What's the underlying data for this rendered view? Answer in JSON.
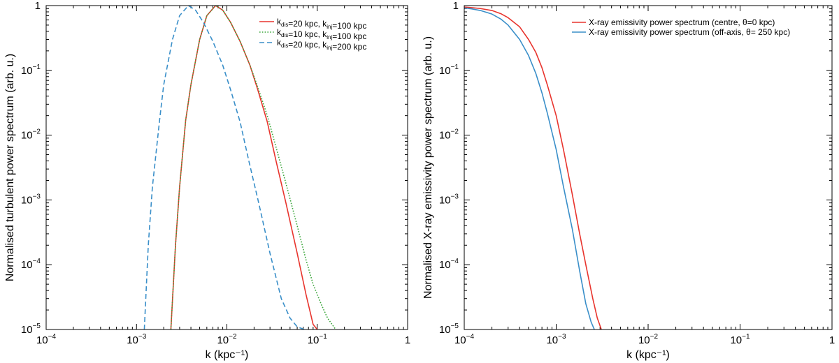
{
  "chart_data": [
    {
      "type": "line",
      "x_scale": "log",
      "y_scale": "log",
      "xlim": [
        0.0001,
        1
      ],
      "ylim": [
        1e-05,
        1
      ],
      "xlabel": "k (kpc⁻¹)",
      "ylabel": "Normalised turbulent power spectrum (arb. u.)",
      "x_ticks": [
        {
          "base": "10",
          "exp": "−4",
          "value": 0.0001
        },
        {
          "base": "10",
          "exp": "−3",
          "value": 0.001
        },
        {
          "base": "10",
          "exp": "−2",
          "value": 0.01
        },
        {
          "base": "10",
          "exp": "−1",
          "value": 0.1
        },
        {
          "base": "1",
          "exp": "",
          "value": 1
        }
      ],
      "y_ticks": [
        {
          "base": "10",
          "exp": "−5",
          "value": 1e-05
        },
        {
          "base": "10",
          "exp": "−4",
          "value": 0.0001
        },
        {
          "base": "10",
          "exp": "−3",
          "value": 0.001
        },
        {
          "base": "10",
          "exp": "−2",
          "value": 0.01
        },
        {
          "base": "10",
          "exp": "−1",
          "value": 0.1
        },
        {
          "base": "1",
          "exp": "",
          "value": 1
        }
      ],
      "legend_position": "top-right",
      "series": [
        {
          "name": "k_dis=20 kpc, k_inj=100 kpc",
          "legend_parts": [
            [
              "k",
              ""
            ],
            [
              "dis",
              "sub"
            ],
            [
              "=20 kpc, k",
              ""
            ],
            [
              "inj",
              "sub"
            ],
            [
              "=100 kpc",
              ""
            ]
          ],
          "color": "#e8352e",
          "dash": "solid",
          "x": [
            0.0024,
            0.0027,
            0.003,
            0.0035,
            0.004,
            0.005,
            0.006,
            0.0075,
            0.009,
            0.011,
            0.014,
            0.018,
            0.022,
            0.028,
            0.035,
            0.045,
            0.06,
            0.075,
            0.09,
            0.1
          ],
          "y": [
            1e-05,
            0.0002,
            0.0016,
            0.017,
            0.06,
            0.3,
            0.7,
            1.0,
            0.85,
            0.55,
            0.28,
            0.12,
            0.05,
            0.016,
            0.004,
            0.0009,
            0.00015,
            3.5e-05,
            1.2e-05,
            1e-05
          ]
        },
        {
          "name": "k_dis=10 kpc, k_inj=100 kpc",
          "legend_parts": [
            [
              "k",
              ""
            ],
            [
              "dis",
              "sub"
            ],
            [
              "=10 kpc, k",
              ""
            ],
            [
              "inj",
              "sub"
            ],
            [
              "=100 kpc",
              ""
            ]
          ],
          "color": "#3aa63a",
          "dash": "dotted",
          "x": [
            0.0024,
            0.0027,
            0.003,
            0.0035,
            0.004,
            0.005,
            0.006,
            0.0075,
            0.009,
            0.011,
            0.014,
            0.018,
            0.022,
            0.028,
            0.035,
            0.045,
            0.06,
            0.075,
            0.09,
            0.11,
            0.13,
            0.16
          ],
          "y": [
            1e-05,
            0.0002,
            0.0016,
            0.017,
            0.06,
            0.3,
            0.7,
            1.0,
            0.85,
            0.55,
            0.28,
            0.12,
            0.055,
            0.02,
            0.0065,
            0.0018,
            0.0004,
            0.00012,
            5e-05,
            2.5e-05,
            1.5e-05,
            1e-05
          ]
        },
        {
          "name": "k_dis=20 kpc, k_inj=200 kpc",
          "legend_parts": [
            [
              "k",
              ""
            ],
            [
              "dis",
              "sub"
            ],
            [
              "=20 kpc, k",
              ""
            ],
            [
              "inj",
              "sub"
            ],
            [
              "=200 kpc",
              ""
            ]
          ],
          "color": "#3a8fc9",
          "dash": "dashed",
          "x": [
            0.00122,
            0.00135,
            0.0015,
            0.0018,
            0.002,
            0.0025,
            0.003,
            0.00375,
            0.0045,
            0.0055,
            0.007,
            0.009,
            0.011,
            0.014,
            0.0175,
            0.0225,
            0.03,
            0.04,
            0.05,
            0.06,
            0.072
          ],
          "y": [
            1e-05,
            0.0002,
            0.0016,
            0.017,
            0.06,
            0.3,
            0.7,
            1.0,
            0.85,
            0.55,
            0.28,
            0.12,
            0.05,
            0.016,
            0.004,
            0.0009,
            0.00015,
            3e-05,
            1.5e-05,
            1.1e-05,
            1e-05
          ]
        }
      ]
    },
    {
      "type": "line",
      "x_scale": "log",
      "y_scale": "log",
      "xlim": [
        0.0001,
        1
      ],
      "ylim": [
        1e-05,
        1
      ],
      "xlabel": "k (kpc⁻¹)",
      "ylabel": "Normalised X-ray emissivity power spectrum (arb. u.)",
      "x_ticks": [
        {
          "base": "10",
          "exp": "−4",
          "value": 0.0001
        },
        {
          "base": "10",
          "exp": "−3",
          "value": 0.001
        },
        {
          "base": "10",
          "exp": "−2",
          "value": 0.01
        },
        {
          "base": "10",
          "exp": "−1",
          "value": 0.1
        },
        {
          "base": "1",
          "exp": "",
          "value": 1
        }
      ],
      "y_ticks": [
        {
          "base": "10",
          "exp": "−5",
          "value": 1e-05
        },
        {
          "base": "10",
          "exp": "−4",
          "value": 0.0001
        },
        {
          "base": "10",
          "exp": "−3",
          "value": 0.001
        },
        {
          "base": "10",
          "exp": "−2",
          "value": 0.01
        },
        {
          "base": "10",
          "exp": "−1",
          "value": 0.1
        },
        {
          "base": "1",
          "exp": "",
          "value": 1
        }
      ],
      "legend_position": "top-right",
      "series": [
        {
          "name": "X-ray emissivity power spectrum (centre, θ=0 kpc)",
          "legend_parts": [
            [
              "X-ray emissivity power spectrum (centre, θ=0 kpc)",
              ""
            ]
          ],
          "color": "#e8352e",
          "dash": "solid",
          "x": [
            0.0001,
            0.00012,
            0.00015,
            0.0002,
            0.00025,
            0.0003,
            0.0004,
            0.0005,
            0.0006,
            0.0007,
            0.0008,
            0.001,
            0.0012,
            0.0015,
            0.0018,
            0.0021,
            0.0025,
            0.0028,
            0.0031
          ],
          "y": [
            0.95,
            0.93,
            0.9,
            0.84,
            0.75,
            0.65,
            0.47,
            0.3,
            0.19,
            0.11,
            0.06,
            0.02,
            0.006,
            0.0012,
            0.0003,
            0.0001,
            3e-05,
            1.5e-05,
            1e-05
          ]
        },
        {
          "name": "X-ray emissivity power spectrum (off-axis, θ= 250 kpc)",
          "legend_parts": [
            [
              "X-ray emissivity power spectrum (off-axis, θ= 250 kpc)",
              ""
            ]
          ],
          "color": "#3a8fc9",
          "dash": "solid",
          "x": [
            0.0001,
            0.00012,
            0.00015,
            0.0002,
            0.00025,
            0.0003,
            0.0004,
            0.0005,
            0.0006,
            0.0007,
            0.0008,
            0.001,
            0.0012,
            0.0015,
            0.0018,
            0.0021,
            0.0024,
            0.0026
          ],
          "y": [
            0.92,
            0.89,
            0.84,
            0.74,
            0.62,
            0.5,
            0.3,
            0.17,
            0.09,
            0.045,
            0.022,
            0.006,
            0.0016,
            0.00035,
            8e-05,
            2.5e-05,
            1.3e-05,
            1e-05
          ]
        }
      ]
    }
  ]
}
